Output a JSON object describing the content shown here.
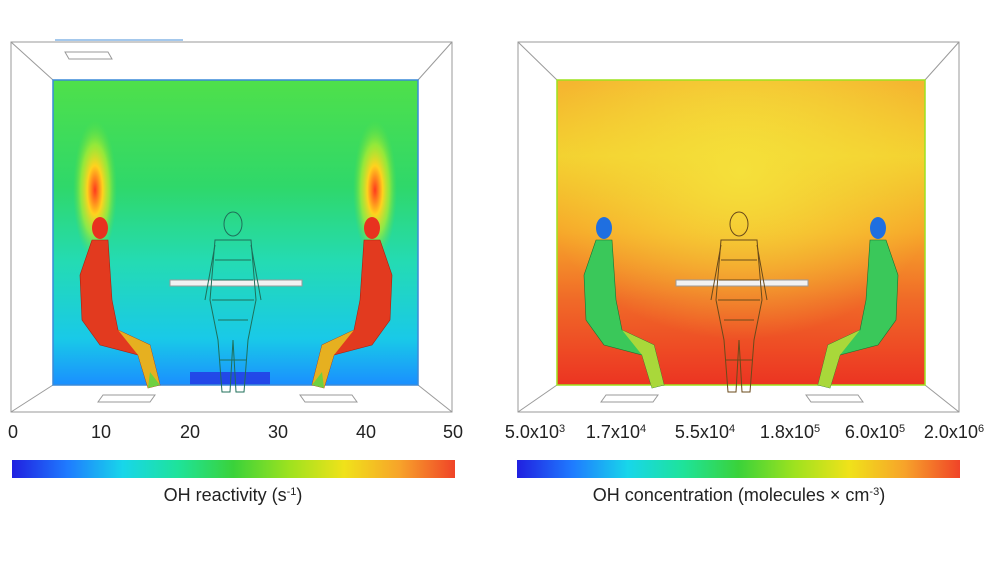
{
  "left": {
    "colorbar": {
      "ticks": [
        "0",
        "10",
        "20",
        "30",
        "40",
        "50"
      ],
      "label_main": "OH reactivity (s",
      "label_exp": "-1",
      "label_end": ")",
      "colors": [
        "#2020e0",
        "#1f7bff",
        "#18d6ea",
        "#1ee39a",
        "#3ad23a",
        "#9de21f",
        "#f0e21a",
        "#f7a32a",
        "#f04428"
      ]
    }
  },
  "right": {
    "colorbar": {
      "ticks": [
        {
          "mant": "5.0x10",
          "exp": "3"
        },
        {
          "mant": "1.7x10",
          "exp": "4"
        },
        {
          "mant": "5.5x10",
          "exp": "4"
        },
        {
          "mant": "1.8x10",
          "exp": "5"
        },
        {
          "mant": "6.0x10",
          "exp": "5"
        },
        {
          "mant": "2.0x10",
          "exp": "6"
        }
      ],
      "label_main": "OH concentration (molecules × cm",
      "label_exp": "-3",
      "label_end": ")",
      "colors": [
        "#2020e0",
        "#1f7bff",
        "#18d6ea",
        "#1ee39a",
        "#3ad23a",
        "#9de21f",
        "#f0e21a",
        "#f7a32a",
        "#f04428"
      ]
    }
  }
}
